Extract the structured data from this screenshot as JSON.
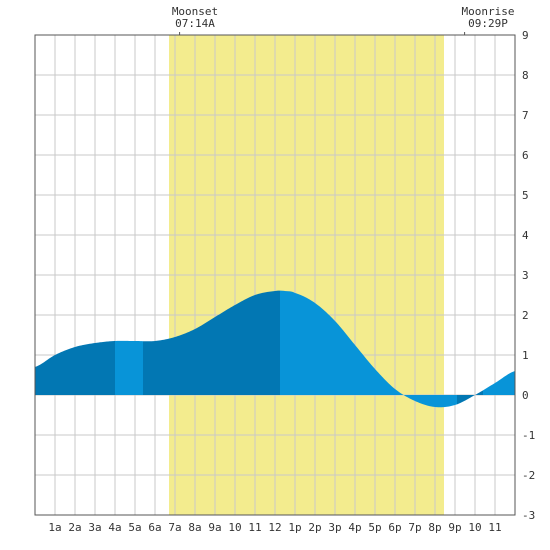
{
  "moon": {
    "set_label": "Moonset",
    "set_time": "07:14A",
    "rise_label": "Moonrise",
    "rise_time": "09:29P"
  },
  "colors": {
    "daylight": "#f3ec8e",
    "tide_fill_dark": "#0277b3",
    "tide_fill_light": "#0894d8",
    "grid": "#c8c8c8",
    "axis": "#555555"
  },
  "chart_data": {
    "type": "area",
    "title": "",
    "xlabel": "",
    "ylabel": "",
    "x_ticks": [
      "1a",
      "2a",
      "3a",
      "4a",
      "5a",
      "6a",
      "7a",
      "8a",
      "9a",
      "10",
      "11",
      "12",
      "1p",
      "2p",
      "3p",
      "4p",
      "5p",
      "6p",
      "7p",
      "8p",
      "9p",
      "10",
      "11"
    ],
    "y_ticks": [
      9,
      8,
      7,
      6,
      5,
      4,
      3,
      2,
      1,
      0,
      -1,
      -2,
      -3
    ],
    "xlim": [
      0,
      24
    ],
    "ylim": [
      -3,
      9
    ],
    "grid": true,
    "daylight_hours": [
      6.7,
      20.45
    ],
    "moonset_hour": 7.23,
    "moonrise_hour": 21.48,
    "series": [
      {
        "x": [
          0,
          1,
          2,
          3,
          4,
          5,
          6,
          7,
          8,
          9,
          10,
          11,
          12,
          12.5,
          13,
          14,
          15,
          16,
          17,
          18,
          19,
          20,
          21,
          22,
          23,
          24
        ],
        "values": [
          0.7,
          1.0,
          1.2,
          1.3,
          1.35,
          1.35,
          1.35,
          1.45,
          1.65,
          1.95,
          2.25,
          2.5,
          2.6,
          2.6,
          2.55,
          2.3,
          1.85,
          1.25,
          0.65,
          0.15,
          -0.15,
          -0.3,
          -0.25,
          0.0,
          0.3,
          0.6
        ]
      }
    ],
    "bands": [
      {
        "from": 0,
        "to": 4,
        "shade": "dark"
      },
      {
        "from": 4,
        "to": 5.4,
        "shade": "light"
      },
      {
        "from": 5.4,
        "to": 12.25,
        "shade": "dark"
      },
      {
        "from": 12.25,
        "to": 21.1,
        "shade": "light"
      },
      {
        "from": 21.1,
        "to": 22.4,
        "shade": "dark"
      },
      {
        "from": 22.4,
        "to": 24,
        "shade": "light"
      }
    ]
  }
}
